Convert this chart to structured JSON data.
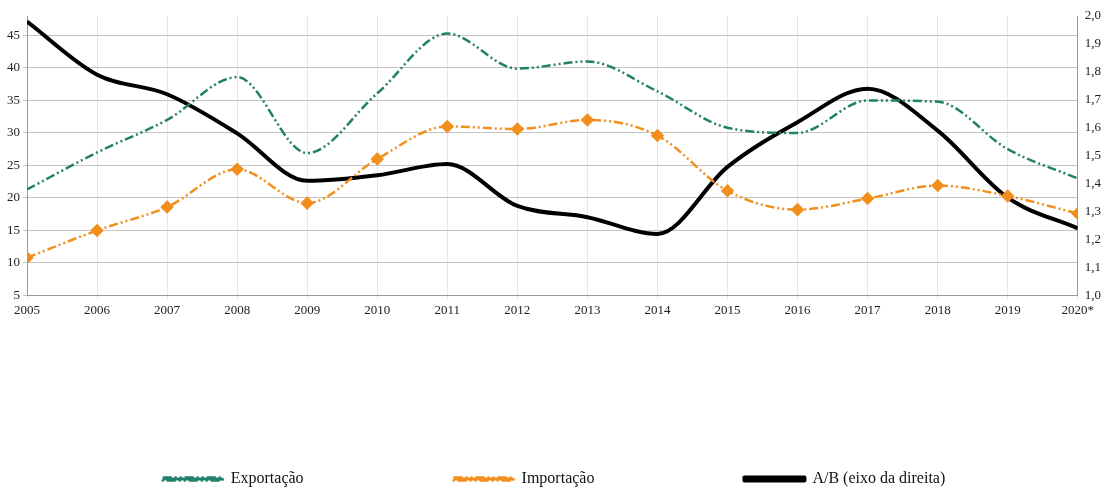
{
  "chart_data": {
    "type": "line",
    "x": [
      2005,
      2006,
      2007,
      2008,
      2009,
      2010,
      2011,
      2012,
      2013,
      2014,
      2015,
      2016,
      2017,
      2018,
      2019,
      2020
    ],
    "series": [
      {
        "name": "Exportação",
        "color": "#21806a",
        "line_style": "dashed",
        "marker": "none",
        "values": [
          21.3,
          27.0,
          32.0,
          38.6,
          26.9,
          36.1,
          45.3,
          39.9,
          41.0,
          36.4,
          30.8,
          30.0,
          35.0,
          34.8,
          27.5,
          23.0
        ]
      },
      {
        "name": "Importação",
        "color": "#f28e1c",
        "line_style": "dashed",
        "marker": "diamond",
        "values": [
          10.8,
          15.0,
          18.6,
          24.4,
          19.2,
          26.0,
          31.0,
          30.6,
          32.0,
          29.6,
          21.1,
          18.2,
          19.9,
          21.9,
          20.3,
          17.6
        ]
      },
      {
        "name": "A/B (eixo da direita)",
        "color": "#000000",
        "line_style": "solid",
        "marker": "none",
        "axis": "y2",
        "values": [
          1.98,
          1.79,
          1.72,
          1.58,
          1.41,
          1.43,
          1.47,
          1.32,
          1.28,
          1.22,
          1.46,
          1.62,
          1.74,
          1.59,
          1.35,
          1.24
        ]
      }
    ],
    "xlim": [
      2005,
      2020
    ],
    "xticks": [
      2005,
      2006,
      2007,
      2008,
      2009,
      2010,
      2011,
      2012,
      2013,
      2014,
      2015,
      2016,
      2017,
      2018,
      2019,
      {
        "value": 2020,
        "label": "2020*"
      }
    ],
    "ylim": [
      5,
      48
    ],
    "yticks": [
      5,
      10,
      15,
      20,
      25,
      30,
      35,
      40,
      45
    ],
    "y2lim": [
      1,
      2
    ],
    "y2ticks": [
      {
        "value": 1,
        "label": "1,0"
      },
      {
        "value": 1.1,
        "label": "1,1"
      },
      {
        "value": 1.2,
        "label": "1,2"
      },
      {
        "value": 1.3,
        "label": "1,3"
      },
      {
        "value": 1.4,
        "label": "1,4"
      },
      {
        "value": 1.5,
        "label": "1,5"
      },
      {
        "value": 1.6,
        "label": "1,6"
      },
      {
        "value": 1.7,
        "label": "1,7"
      },
      {
        "value": 1.8,
        "label": "1,8"
      },
      {
        "value": 1.9,
        "label": "1,9"
      },
      {
        "value": 2,
        "label": "2,0"
      }
    ],
    "grid": true,
    "legend": "bottom"
  }
}
